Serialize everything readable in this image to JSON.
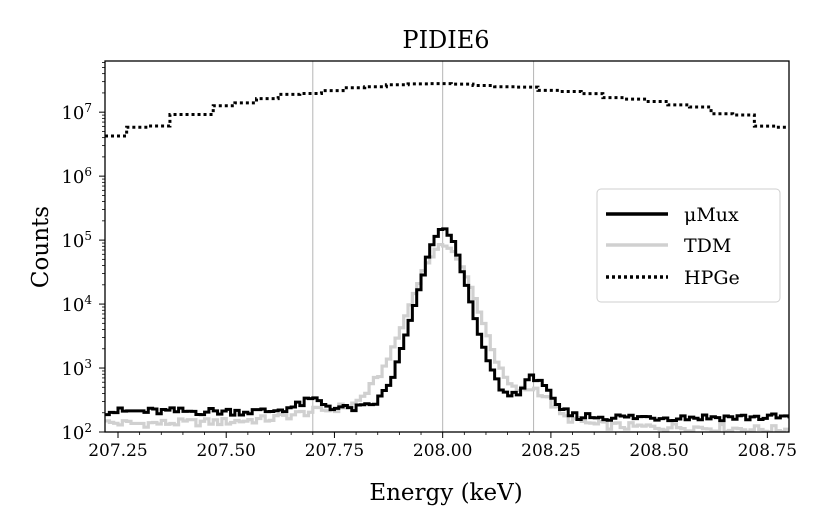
{
  "chart_data": {
    "type": "line",
    "title": "PIDIE6",
    "xlabel": "Energy (keV)",
    "ylabel": "Counts",
    "yscale": "log",
    "xlim": [
      207.22,
      208.8
    ],
    "ylim_log10": [
      2.0,
      7.8
    ],
    "x_ticks": [
      207.25,
      207.5,
      207.75,
      208.0,
      208.25,
      208.5,
      208.75
    ],
    "x_tick_labels": [
      "207.25",
      "207.50",
      "207.75",
      "208.00",
      "208.25",
      "208.50",
      "208.75"
    ],
    "y_tick_exponents": [
      2,
      3,
      4,
      5,
      6,
      7
    ],
    "y_tick_base": "10",
    "vertical_lines": [
      207.7,
      208.0,
      208.21
    ],
    "legend": {
      "placement": "center-right",
      "entries": [
        "μMux",
        "TDM",
        "HPGe"
      ]
    },
    "series": [
      {
        "name": "μMux",
        "color": "#000000",
        "style": "solid",
        "bin_width": 0.01,
        "points": [
          [
            207.22,
            210
          ],
          [
            207.3,
            210
          ],
          [
            207.4,
            210
          ],
          [
            207.5,
            210
          ],
          [
            207.6,
            210
          ],
          [
            207.66,
            250
          ],
          [
            207.7,
            330
          ],
          [
            207.74,
            250
          ],
          [
            207.78,
            230
          ],
          [
            207.82,
            240
          ],
          [
            207.85,
            300
          ],
          [
            207.88,
            600
          ],
          [
            207.91,
            2500
          ],
          [
            207.94,
            12000
          ],
          [
            207.97,
            70000
          ],
          [
            207.99,
            140000
          ],
          [
            208.0,
            150000
          ],
          [
            208.01,
            140000
          ],
          [
            208.03,
            80000
          ],
          [
            208.06,
            14000
          ],
          [
            208.09,
            2500
          ],
          [
            208.12,
            700
          ],
          [
            208.15,
            360
          ],
          [
            208.18,
            450
          ],
          [
            208.21,
            750
          ],
          [
            208.23,
            650
          ],
          [
            208.26,
            250
          ],
          [
            208.3,
            180
          ],
          [
            208.4,
            170
          ],
          [
            208.5,
            170
          ],
          [
            208.6,
            170
          ],
          [
            208.7,
            170
          ],
          [
            208.8,
            170
          ]
        ]
      },
      {
        "name": "TDM",
        "color": "#d0d0d0",
        "style": "solid",
        "bin_width": 0.01,
        "points": [
          [
            207.22,
            140
          ],
          [
            207.3,
            135
          ],
          [
            207.4,
            140
          ],
          [
            207.5,
            145
          ],
          [
            207.6,
            160
          ],
          [
            207.7,
            210
          ],
          [
            207.75,
            230
          ],
          [
            207.8,
            280
          ],
          [
            207.84,
            550
          ],
          [
            207.87,
            1200
          ],
          [
            207.9,
            3500
          ],
          [
            207.93,
            12000
          ],
          [
            207.96,
            40000
          ],
          [
            207.99,
            78000
          ],
          [
            208.0,
            85000
          ],
          [
            208.02,
            75000
          ],
          [
            208.04,
            45000
          ],
          [
            208.07,
            15000
          ],
          [
            208.1,
            4000
          ],
          [
            208.13,
            1000
          ],
          [
            208.16,
            480
          ],
          [
            208.19,
            450
          ],
          [
            208.21,
            500
          ],
          [
            208.24,
            350
          ],
          [
            208.28,
            170
          ],
          [
            208.35,
            130
          ],
          [
            208.45,
            120
          ],
          [
            208.55,
            120
          ],
          [
            208.65,
            115
          ],
          [
            208.75,
            110
          ],
          [
            208.8,
            110
          ]
        ]
      },
      {
        "name": "HPGe",
        "color": "#000000",
        "style": "dotted",
        "bin_width": 0.05,
        "points": [
          [
            207.22,
            3400000
          ],
          [
            207.28,
            5800000
          ],
          [
            207.34,
            5800000
          ],
          [
            207.39,
            9200000
          ],
          [
            207.45,
            9200000
          ],
          [
            207.51,
            14000000
          ],
          [
            207.57,
            14000000
          ],
          [
            207.62,
            19000000
          ],
          [
            207.68,
            19000000
          ],
          [
            207.73,
            21000000
          ],
          [
            207.79,
            24000000
          ],
          [
            207.85,
            25000000
          ],
          [
            207.9,
            27000000
          ],
          [
            207.96,
            28000000
          ],
          [
            208.02,
            28000000
          ],
          [
            208.07,
            27000000
          ],
          [
            208.13,
            25000000
          ],
          [
            208.19,
            25000000
          ],
          [
            208.24,
            22000000
          ],
          [
            208.3,
            21000000
          ],
          [
            208.36,
            19000000
          ],
          [
            208.41,
            16000000
          ],
          [
            208.47,
            16000000
          ],
          [
            208.53,
            13000000
          ],
          [
            208.58,
            13000000
          ],
          [
            208.64,
            9500000
          ],
          [
            208.7,
            9000000
          ],
          [
            208.75,
            5800000
          ],
          [
            208.8,
            5800000
          ]
        ]
      }
    ]
  }
}
